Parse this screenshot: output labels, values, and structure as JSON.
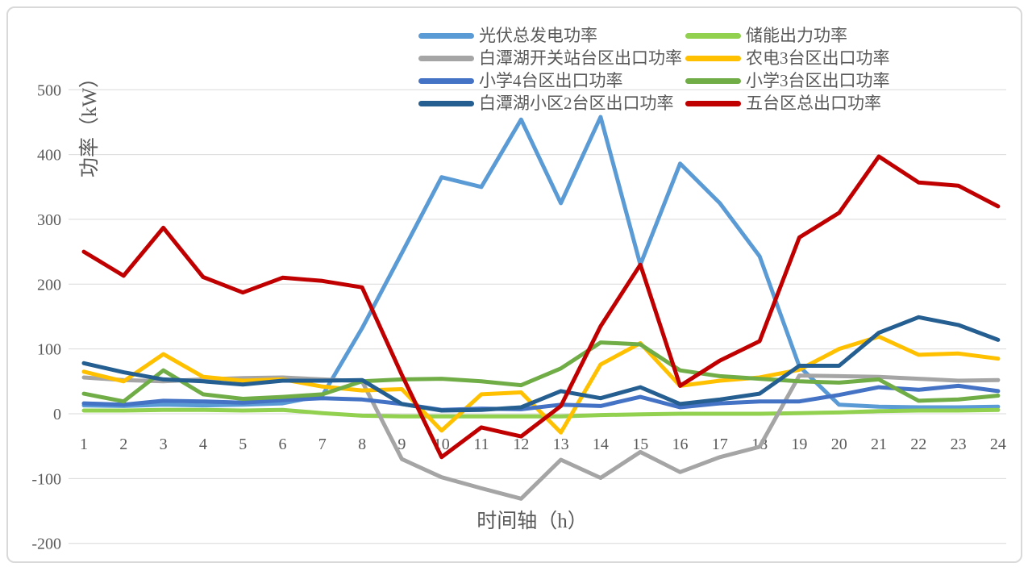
{
  "chart_data": {
    "type": "line",
    "title": "",
    "xlabel": "时间轴（h）",
    "ylabel": "功率（kW）",
    "grid": true,
    "legend_position": "top-center-two-columns",
    "x": [
      1,
      2,
      3,
      4,
      5,
      6,
      7,
      8,
      9,
      10,
      11,
      12,
      13,
      14,
      15,
      16,
      17,
      18,
      19,
      20,
      21,
      22,
      23,
      24
    ],
    "y_axis": {
      "min": -200,
      "max": 500,
      "step": 100,
      "ticks": [
        500,
        400,
        300,
        200,
        100,
        0,
        -100,
        -200
      ]
    },
    "series": [
      {
        "name": "光伏总发电功率",
        "color": "#5B9BD5",
        "values": [
          13,
          12,
          14,
          13,
          14,
          16,
          28,
          132,
          248,
          365,
          350,
          454,
          325,
          458,
          230,
          386,
          325,
          243,
          73,
          14,
          11,
          10,
          10,
          11
        ]
      },
      {
        "name": "储能出力功率",
        "color": "#92D050",
        "values": [
          5,
          5,
          6,
          6,
          5,
          6,
          1,
          -3,
          -4,
          -4,
          -4,
          -4,
          -4,
          -2,
          -1,
          0,
          0,
          0,
          1,
          2,
          4,
          5,
          5,
          6
        ]
      },
      {
        "name": "白潭湖开关站台区出口功率",
        "color": "#A5A5A5",
        "values": [
          56,
          52,
          50,
          53,
          55,
          56,
          53,
          50,
          -70,
          -98,
          -115,
          -131,
          -71,
          -99,
          -59,
          -90,
          -67,
          -51,
          59,
          58,
          57,
          54,
          51,
          52
        ]
      },
      {
        "name": "农电3台区出口功率",
        "color": "#FFC000",
        "values": [
          65,
          50,
          92,
          57,
          51,
          53,
          42,
          36,
          38,
          -26,
          30,
          33,
          -29,
          76,
          109,
          43,
          51,
          56,
          68,
          100,
          119,
          91,
          93,
          85
        ]
      },
      {
        "name": "小学4台区出口功率",
        "color": "#4472C4",
        "values": [
          16,
          14,
          20,
          19,
          17,
          21,
          24,
          22,
          15,
          6,
          8,
          7,
          14,
          12,
          26,
          10,
          16,
          19,
          19,
          29,
          41,
          37,
          43,
          35
        ]
      },
      {
        "name": "小学3台区出口功率",
        "color": "#70AD47",
        "values": [
          31,
          19,
          67,
          30,
          23,
          26,
          30,
          50,
          53,
          54,
          50,
          44,
          70,
          110,
          107,
          67,
          58,
          54,
          50,
          48,
          53,
          20,
          22,
          28
        ]
      },
      {
        "name": "白潭湖小区2台区出口功率",
        "color": "#255E91",
        "values": [
          78,
          64,
          53,
          50,
          45,
          51,
          51,
          52,
          15,
          5,
          6,
          10,
          35,
          24,
          41,
          15,
          22,
          31,
          74,
          74,
          125,
          149,
          137,
          114
        ]
      },
      {
        "name": "五台区总出口功率",
        "color": "#C00000",
        "values": [
          250,
          213,
          287,
          211,
          187,
          210,
          205,
          195,
          60,
          -67,
          -21,
          -35,
          12,
          135,
          230,
          43,
          82,
          112,
          272,
          310,
          397,
          357,
          352,
          320
        ]
      }
    ]
  },
  "colors": {
    "grid": "#D9D9D9",
    "text": "#595959",
    "border": "#D9D9D9",
    "background": "#FFFFFF"
  }
}
